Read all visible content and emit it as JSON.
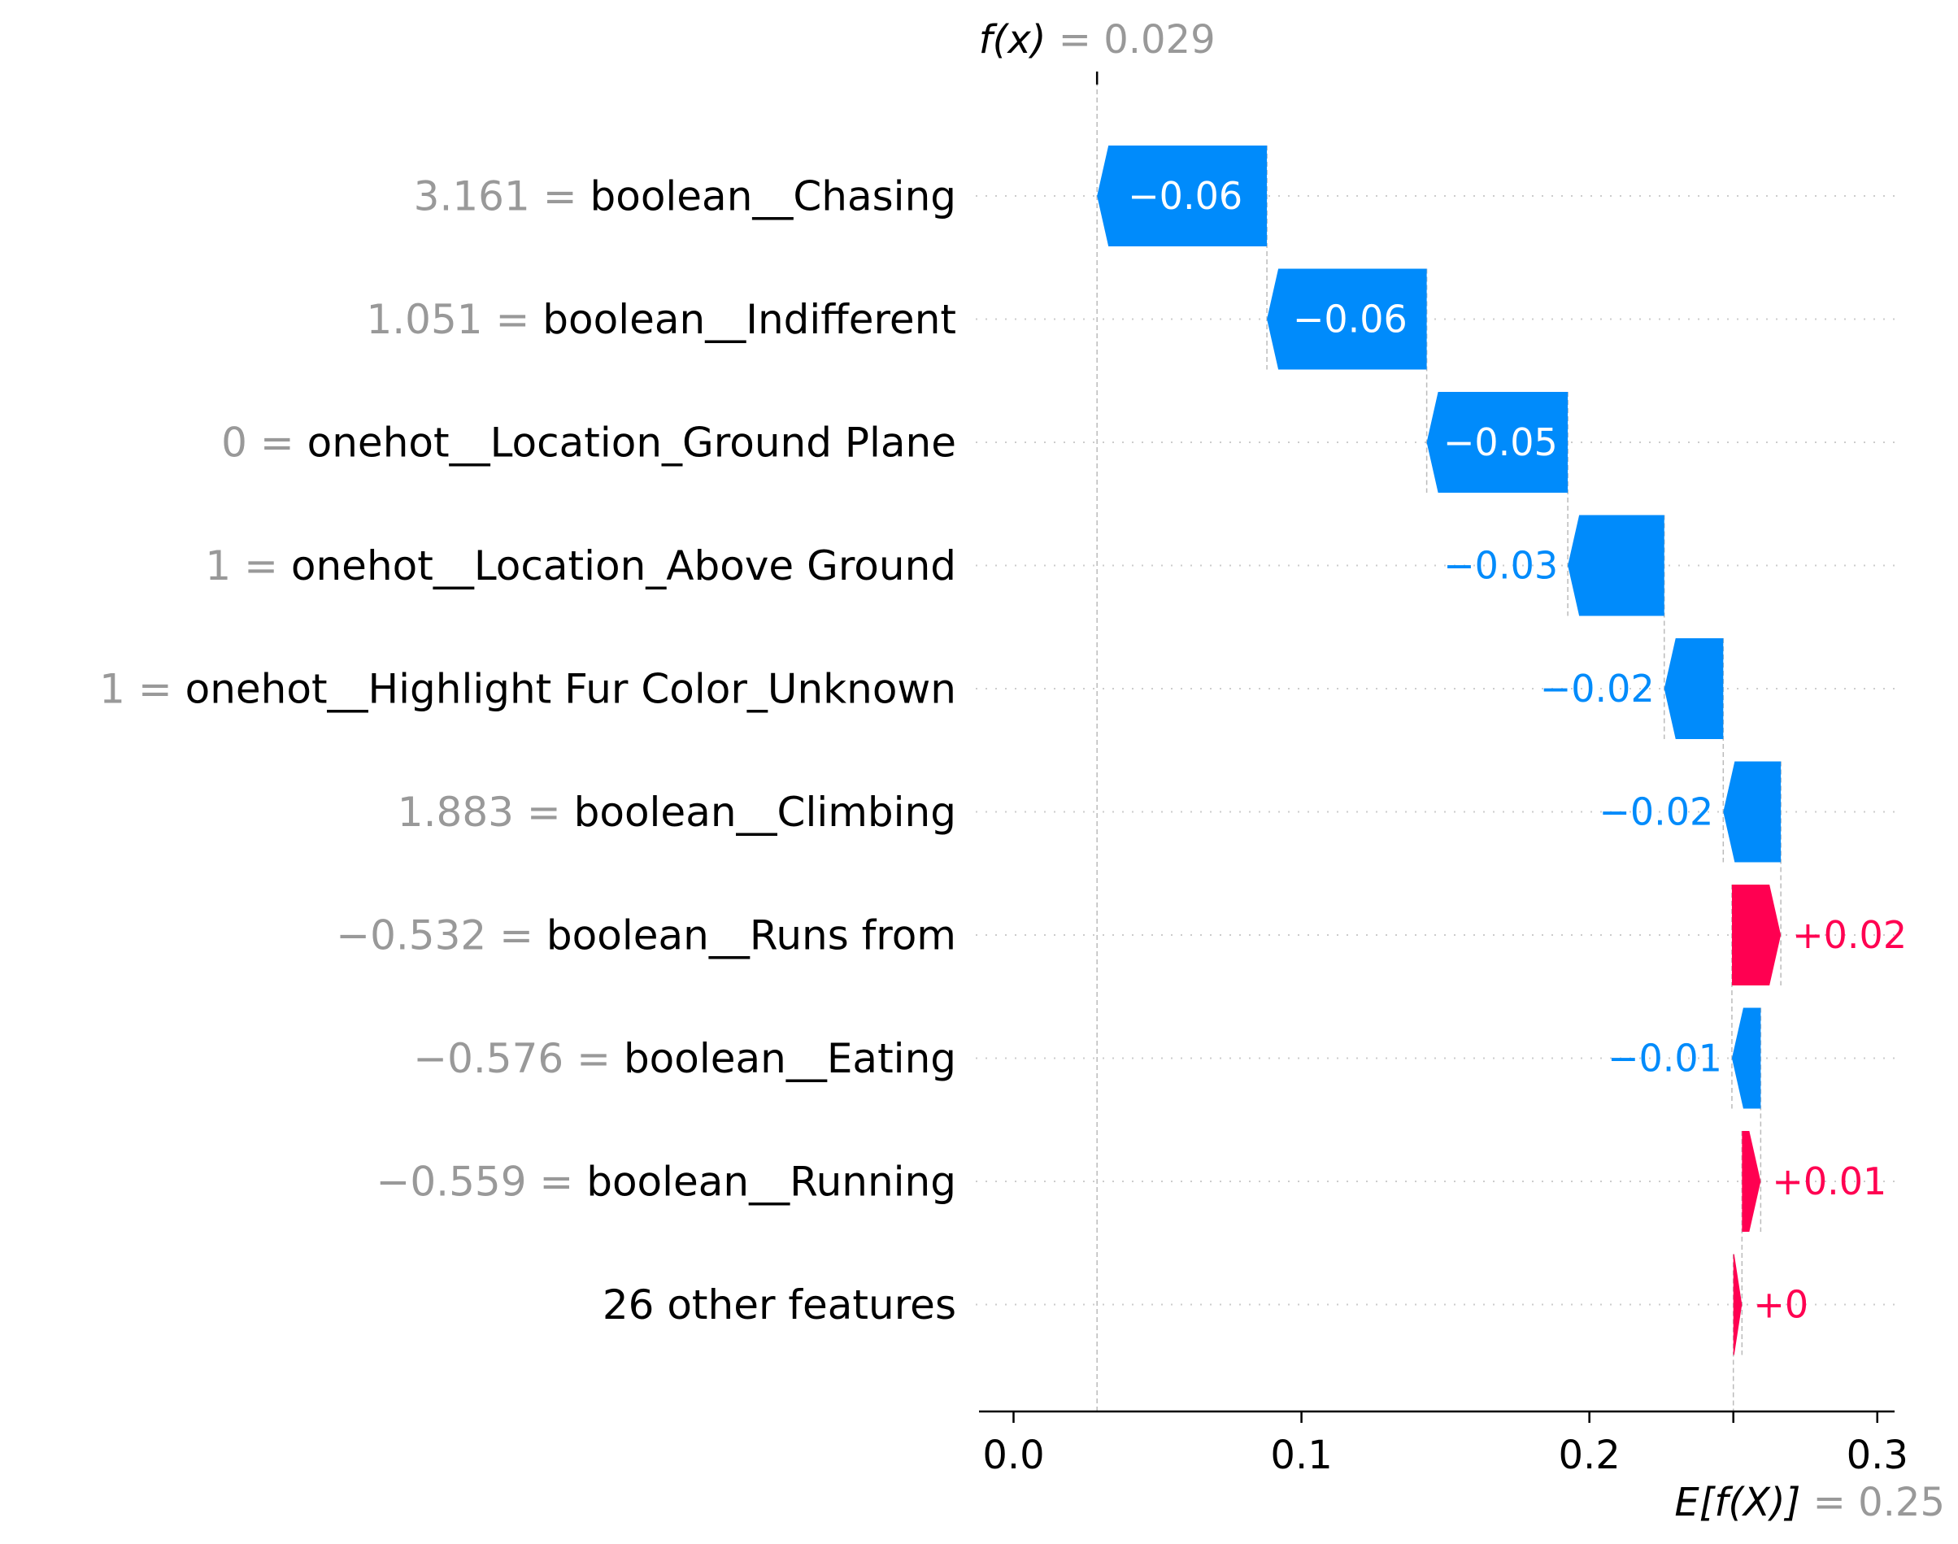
{
  "chart_data": {
    "type": "waterfall",
    "title": "",
    "xlabel": "",
    "ylabel": "",
    "xlim": [
      -0.012,
      0.306
    ],
    "grid": true,
    "legend": "none",
    "base_value": 0.25,
    "base_label": "E[f(X)]",
    "base_value_text": "= 0.25",
    "fx_value": 0.029,
    "fx_label": "f(x)",
    "fx_value_text": "= 0.029",
    "x_ticks": [
      {
        "value": 0.0,
        "label": "0.0"
      },
      {
        "value": 0.1,
        "label": "0.1"
      },
      {
        "value": 0.2,
        "label": "0.2"
      },
      {
        "value": 0.3,
        "label": "0.3"
      }
    ],
    "features": [
      {
        "value_text": "3.161",
        "name": "boolean__Chasing",
        "start": 0.088,
        "end": 0.029,
        "label": "−0.06"
      },
      {
        "value_text": "1.051",
        "name": "boolean__Indifferent",
        "start": 0.1435,
        "end": 0.088,
        "label": "−0.06"
      },
      {
        "value_text": "0",
        "name": "onehot__Location_Ground Plane",
        "start": 0.1925,
        "end": 0.1435,
        "label": "−0.05"
      },
      {
        "value_text": "1",
        "name": "onehot__Location_Above Ground",
        "start": 0.226,
        "end": 0.1925,
        "label": "−0.03"
      },
      {
        "value_text": "1",
        "name": "onehot__Highlight Fur Color_Unknown",
        "start": 0.2465,
        "end": 0.226,
        "label": "−0.02"
      },
      {
        "value_text": "1.883",
        "name": "boolean__Climbing",
        "start": 0.2665,
        "end": 0.2465,
        "label": "−0.02"
      },
      {
        "value_text": "−0.532",
        "name": "boolean__Runs from",
        "start": 0.2495,
        "end": 0.2665,
        "label": "+0.02"
      },
      {
        "value_text": "−0.576",
        "name": "boolean__Eating",
        "start": 0.2595,
        "end": 0.2495,
        "label": "−0.01"
      },
      {
        "value_text": "−0.559",
        "name": "boolean__Running",
        "start": 0.253,
        "end": 0.2595,
        "label": "+0.01"
      },
      {
        "value_text": "",
        "name": "26 other features",
        "start": 0.25,
        "end": 0.253,
        "label": "+0"
      }
    ],
    "colors": {
      "negative": "#008bfb",
      "positive": "#ff0051",
      "value_gray": "#999999",
      "text": "#000000",
      "grid": "#cccccc",
      "connector": "#bbbbbb"
    }
  }
}
